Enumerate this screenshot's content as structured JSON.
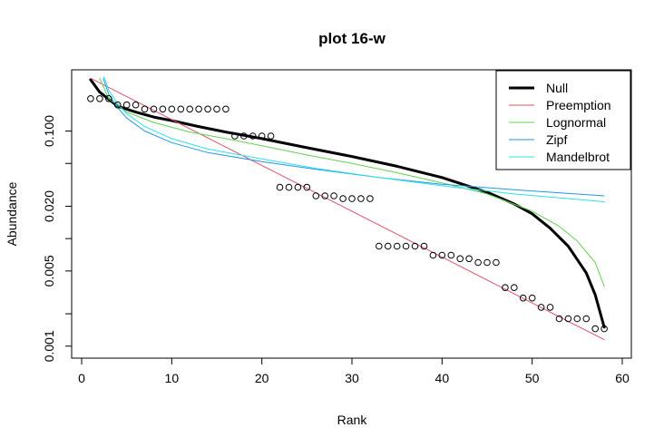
{
  "chart_data": {
    "type": "line",
    "title": "plot 16-w",
    "xlabel": "Rank",
    "ylabel": "Abundance",
    "x_scale": "linear",
    "y_scale": "log",
    "xlim": [
      0,
      60
    ],
    "ylim": [
      0.00082,
      0.35
    ],
    "x_ticks": [
      0,
      10,
      20,
      30,
      40,
      50,
      60
    ],
    "x_tick_labels": [
      "0",
      "10",
      "20",
      "30",
      "40",
      "50",
      "60"
    ],
    "y_ticks_labeled": [
      0.001,
      0.005,
      0.02,
      0.1
    ],
    "y_tick_labels": [
      "0.001",
      "0.005",
      "0.020",
      "0.100"
    ],
    "y_ticks_minor": [
      0.002,
      0.01,
      0.05
    ],
    "legend": {
      "position": "top-right"
    },
    "points": {
      "name": "Observed",
      "marker": "open-circle",
      "x": [
        1,
        2,
        3,
        4,
        5,
        6,
        7,
        8,
        9,
        10,
        11,
        12,
        13,
        14,
        15,
        16,
        17,
        18,
        19,
        20,
        21,
        22,
        23,
        24,
        25,
        26,
        27,
        28,
        29,
        30,
        31,
        32,
        33,
        34,
        35,
        36,
        37,
        38,
        39,
        40,
        41,
        42,
        43,
        44,
        45,
        46,
        47,
        48,
        49,
        50,
        51,
        52,
        53,
        54,
        55,
        56,
        57,
        58
      ],
      "y": [
        0.2,
        0.2,
        0.2,
        0.175,
        0.175,
        0.175,
        0.16,
        0.16,
        0.16,
        0.16,
        0.16,
        0.16,
        0.16,
        0.16,
        0.16,
        0.16,
        0.09,
        0.09,
        0.09,
        0.09,
        0.09,
        0.03,
        0.03,
        0.03,
        0.03,
        0.025,
        0.025,
        0.025,
        0.0235,
        0.0235,
        0.0235,
        0.0235,
        0.0085,
        0.0085,
        0.0085,
        0.0085,
        0.0085,
        0.0085,
        0.007,
        0.007,
        0.007,
        0.0065,
        0.0065,
        0.006,
        0.006,
        0.006,
        0.0035,
        0.0035,
        0.0028,
        0.0028,
        0.0023,
        0.0023,
        0.0018,
        0.0018,
        0.0018,
        0.0018,
        0.00145,
        0.00145
      ]
    },
    "series": [
      {
        "name": "Null",
        "color": "#000000",
        "width": 3,
        "x": [
          1,
          2,
          4,
          6,
          8,
          10,
          13,
          16,
          20,
          25,
          30,
          35,
          40,
          45,
          48,
          50,
          52,
          54,
          56,
          57,
          58
        ],
        "y": [
          0.3,
          0.23,
          0.17,
          0.15,
          0.135,
          0.125,
          0.11,
          0.098,
          0.085,
          0.07,
          0.058,
          0.047,
          0.037,
          0.027,
          0.021,
          0.017,
          0.0125,
          0.0085,
          0.0048,
          0.003,
          0.0015
        ]
      },
      {
        "name": "Preemption",
        "color": "#DF536B",
        "width": 1,
        "x": [
          1,
          58
        ],
        "y": [
          0.31,
          0.00115
        ]
      },
      {
        "name": "Lognormal",
        "color": "#61D04F",
        "width": 1,
        "x": [
          2,
          3,
          5,
          8,
          12,
          16,
          20,
          25,
          30,
          35,
          40,
          45,
          50,
          53,
          55,
          57,
          58
        ],
        "y": [
          0.31,
          0.2,
          0.15,
          0.12,
          0.098,
          0.085,
          0.073,
          0.06,
          0.05,
          0.041,
          0.033,
          0.026,
          0.018,
          0.013,
          0.0095,
          0.006,
          0.0036
        ]
      },
      {
        "name": "Zipf",
        "color": "#2297E6",
        "width": 1,
        "x": [
          2.4,
          3,
          4,
          5,
          7,
          10,
          14,
          20,
          26,
          33,
          40,
          48,
          58
        ],
        "y": [
          0.31,
          0.22,
          0.165,
          0.132,
          0.1,
          0.078,
          0.063,
          0.052,
          0.044,
          0.037,
          0.032,
          0.0285,
          0.025
        ]
      },
      {
        "name": "Mandelbrot",
        "color": "#28E2E5",
        "width": 1,
        "x": [
          2.5,
          3,
          4,
          5,
          7,
          10,
          14,
          20,
          26,
          33,
          40,
          48,
          58
        ],
        "y": [
          0.32,
          0.24,
          0.18,
          0.145,
          0.11,
          0.085,
          0.068,
          0.055,
          0.045,
          0.037,
          0.031,
          0.026,
          0.022
        ]
      }
    ]
  }
}
